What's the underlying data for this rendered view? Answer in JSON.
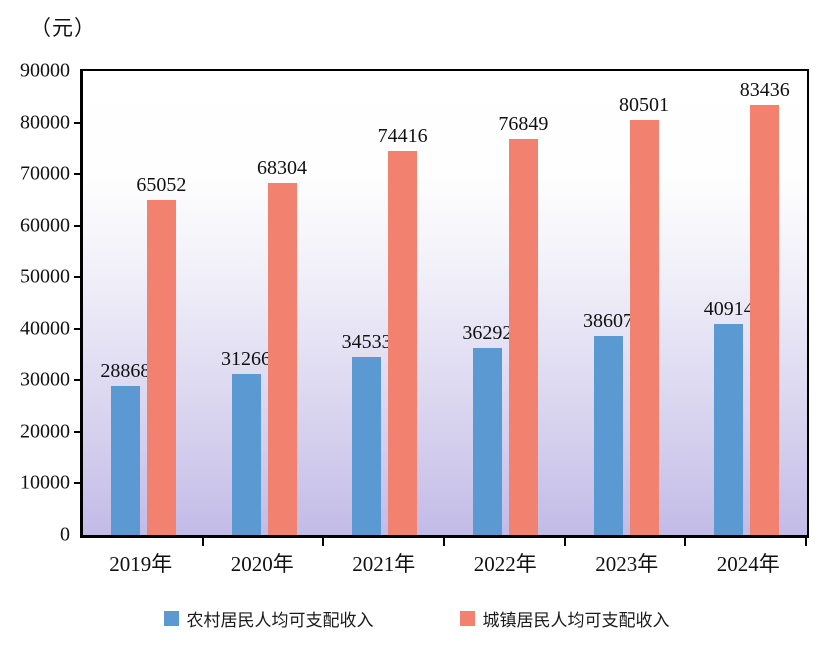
{
  "chart_data": {
    "type": "bar",
    "title": "",
    "unit_label": "（元）",
    "categories": [
      "2019年",
      "2020年",
      "2021年",
      "2022年",
      "2023年",
      "2024年"
    ],
    "series": [
      {
        "name": "农村居民人均可支配收入",
        "key": "rural",
        "color": "#5b99d2",
        "values": [
          28868,
          31266,
          34533,
          36292,
          38607,
          40914
        ]
      },
      {
        "name": "城镇居民人均可支配收入",
        "key": "urban",
        "color": "#f28170",
        "values": [
          65052,
          68304,
          74416,
          76849,
          80501,
          83436
        ]
      }
    ],
    "xlabel": "",
    "ylabel": "（元）",
    "ylim": [
      0,
      90000
    ],
    "ytick_step": 10000,
    "yticks": [
      0,
      10000,
      20000,
      30000,
      40000,
      50000,
      60000,
      70000,
      80000,
      90000
    ],
    "grid": false,
    "data_labels": true,
    "legend_position": "bottom",
    "plot_background": {
      "type": "vertical-gradient",
      "top": "#ffffff",
      "bottom": "#c2bbe7"
    },
    "axis_color": "#000000",
    "label_color": "#111111"
  }
}
